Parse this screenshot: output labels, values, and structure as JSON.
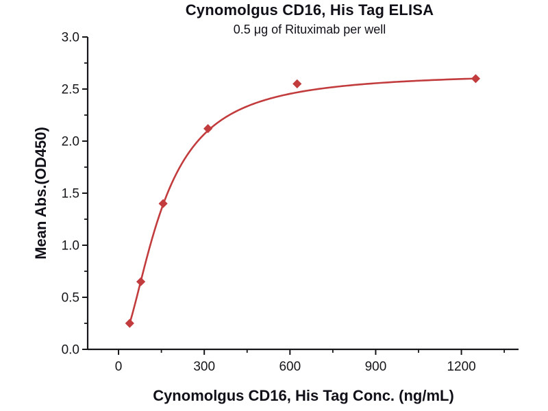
{
  "figure": {
    "title": "Cynomolgus CD16, His Tag ELISA",
    "subtitle": "0.5 μg of Rituximab per well"
  },
  "chart_data": {
    "type": "scatter",
    "title": "Cynomolgus CD16, His Tag ELISA",
    "subtitle": "0.5 μg of Rituximab per well",
    "xlabel": "Cynomolgus CD16, His Tag Conc. (ng/mL)",
    "ylabel": "Mean Abs.(OD450)",
    "x": [
      39,
      78,
      156,
      313,
      625,
      1250
    ],
    "y": [
      0.25,
      0.65,
      1.4,
      2.12,
      2.55,
      2.6
    ],
    "marker": "diamond",
    "fit_curve": "4PL",
    "fit_4pl": {
      "bottom": 0.03,
      "top": 2.66,
      "ec50": 150,
      "hill": 1.78
    },
    "curve_x_range": [
      39,
      1250
    ],
    "x_ticks": [
      0,
      300,
      600,
      900,
      1200
    ],
    "x_minor_ticks": [
      150,
      450,
      750,
      1050,
      1350
    ],
    "xlim": [
      -108,
      1400
    ],
    "y_ticks": [
      "0.0",
      "0.5",
      "1.0",
      "1.5",
      "2.0",
      "2.5",
      "3.0"
    ],
    "y_tick_values": [
      0,
      0.5,
      1.0,
      1.5,
      2.0,
      2.5,
      3.0
    ],
    "y_minor_ticks": [
      0.25,
      0.75,
      1.25,
      1.75,
      2.25,
      2.75
    ],
    "ylim": [
      0,
      3.0
    ],
    "grid": false,
    "legend": "none",
    "colors": {
      "series": "#c23b3d",
      "axis": "#15151a",
      "text": "#15151a",
      "background": "#ffffff"
    }
  }
}
